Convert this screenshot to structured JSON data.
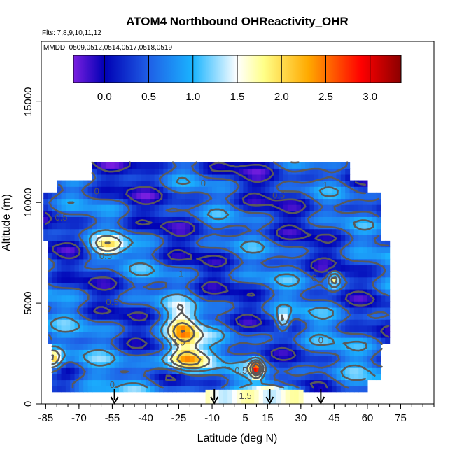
{
  "chart_data": {
    "type": "heatmap",
    "title": "ATOM4 Northbound OHReactivity_OHR",
    "flights_label": "Flts: 7,8,9,10,11,12",
    "dates_label": "MMDD: 0509,0512,0514,0517,0518,0519",
    "xlabel": "Latitude (deg N)",
    "ylabel": "Altitude (m)",
    "xlim": [
      -87,
      90
    ],
    "ylim": [
      0,
      18000
    ],
    "x_ticks": [
      -85,
      -70,
      -55,
      -40,
      -25,
      -10,
      5,
      15,
      30,
      45,
      60,
      75
    ],
    "x_minor_step": 5,
    "y_ticks": [
      0,
      5000,
      10000,
      15000
    ],
    "colorbar": {
      "range": [
        -0.35,
        3.35
      ],
      "ticks": [
        0.0,
        0.5,
        1.0,
        1.5,
        2.0,
        2.5,
        3.0
      ],
      "tick_labels": [
        "0.0",
        "0.5",
        "1.0",
        "1.5",
        "2.0",
        "2.5",
        "3.0"
      ],
      "colors": [
        "#7a1fe0",
        "#0000b4",
        "#1f5fe6",
        "#1ab4ff",
        "#ffffff",
        "#ffff88",
        "#ffaa00",
        "#ff0000",
        "#8b0000"
      ],
      "color_stops": [
        -0.35,
        0.0,
        0.5,
        1.0,
        1.5,
        1.8,
        2.3,
        2.9,
        3.35
      ]
    },
    "data_extent": {
      "lat": [
        -85,
        70
      ],
      "alt": [
        700,
        12000
      ]
    },
    "features": [
      {
        "lat": -23,
        "alt": 3500,
        "value": 2.25,
        "wlat": 5,
        "walt": 800
      },
      {
        "lat": -22,
        "alt": 2200,
        "value": 2.05,
        "wlat": 7,
        "walt": 400
      },
      {
        "lat": -82,
        "alt": 2200,
        "value": 2.05,
        "wlat": 3,
        "walt": 400
      },
      {
        "lat": -57,
        "alt": 7800,
        "value": 1.9,
        "wlat": 6,
        "walt": 350
      },
      {
        "lat": 10,
        "alt": 1750,
        "value": 2.7,
        "wlat": 2,
        "walt": 300
      },
      {
        "lat": 45,
        "alt": 6200,
        "value": 1.9,
        "wlat": 2,
        "walt": 300
      },
      {
        "lat": 22,
        "alt": 4150,
        "value": 1.8,
        "wlat": 2,
        "walt": 300
      },
      {
        "lat": 15,
        "alt": 500,
        "value": 1.7,
        "wlat": 5,
        "walt": 400
      },
      {
        "lat": 25,
        "alt": 300,
        "value": 1.7,
        "wlat": 8,
        "walt": 300
      }
    ],
    "contour_labels": [
      {
        "text": "0",
        "lat": -62,
        "alt": 10400
      },
      {
        "text": "0",
        "lat": -14,
        "alt": 10800
      },
      {
        "text": "0.5",
        "lat": -78,
        "alt": 9100
      },
      {
        "text": "0.5",
        "lat": 20,
        "alt": 10200
      },
      {
        "text": "1",
        "lat": 41,
        "alt": 10700
      },
      {
        "text": "0.5",
        "lat": -58,
        "alt": 7200
      },
      {
        "text": "1",
        "lat": -60,
        "alt": 7800
      },
      {
        "text": "1",
        "lat": -24,
        "alt": 6300
      },
      {
        "text": "0",
        "lat": 36,
        "alt": 6100
      },
      {
        "text": "0.5",
        "lat": -55,
        "alt": 4900
      },
      {
        "text": "1.5",
        "lat": -25,
        "alt": 2900
      },
      {
        "text": "0",
        "lat": 39,
        "alt": 3000
      },
      {
        "text": "1",
        "lat": -24,
        "alt": 1500
      },
      {
        "text": "1",
        "lat": 13,
        "alt": 1600
      },
      {
        "text": "0.5",
        "lat": 3,
        "alt": 1500
      },
      {
        "text": "0",
        "lat": -55,
        "alt": 800
      },
      {
        "text": "1.5",
        "lat": 5,
        "alt": 250
      }
    ],
    "markers": [
      {
        "lat": -54,
        "alt": 0
      },
      {
        "lat": -9,
        "alt": 0
      },
      {
        "lat": 16,
        "alt": 0
      },
      {
        "lat": 39,
        "alt": 0
      }
    ]
  }
}
